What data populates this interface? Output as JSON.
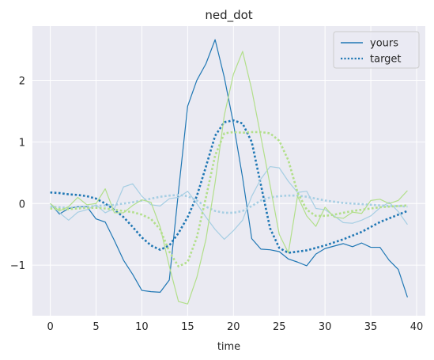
{
  "chart_data": {
    "type": "line",
    "title": "ned_dot",
    "xlabel": "time",
    "ylabel": "",
    "xlim": [
      -1.95,
      40.95
    ],
    "ylim": [
      -1.82,
      2.88
    ],
    "xticks": [
      0,
      5,
      10,
      15,
      20,
      25,
      30,
      35,
      40
    ],
    "yticks": [
      -1,
      0,
      1,
      2
    ],
    "xtick_labels": [
      "0",
      "5",
      "10",
      "15",
      "20",
      "25",
      "30",
      "35",
      "40"
    ],
    "ytick_labels": [
      "−1",
      "0",
      "1",
      "2"
    ],
    "grid": true,
    "legend": {
      "position": "top-right",
      "entries": [
        {
          "label": "yours",
          "style": "solid",
          "color": "#1f77b4"
        },
        {
          "label": "target",
          "style": "dotted",
          "color": "#1f77b4"
        }
      ]
    },
    "x": [
      0,
      1,
      2,
      3,
      4,
      5,
      6,
      7,
      8,
      9,
      10,
      11,
      12,
      13,
      14,
      15,
      16,
      17,
      18,
      19,
      20,
      21,
      22,
      23,
      24,
      25,
      26,
      27,
      28,
      29,
      30,
      31,
      32,
      33,
      34,
      35,
      36,
      37,
      38,
      39
    ],
    "series": [
      {
        "color": "#1f77b4",
        "style": "solid",
        "width": 1.2,
        "values": [
          0.0,
          -0.17,
          -0.08,
          -0.05,
          -0.05,
          -0.25,
          -0.3,
          -0.6,
          -0.92,
          -1.15,
          -1.41,
          -1.43,
          -1.44,
          -1.24,
          0.2,
          1.58,
          2.0,
          2.27,
          2.66,
          2.05,
          1.3,
          0.42,
          -0.57,
          -0.74,
          -0.75,
          -0.78,
          -0.9,
          -0.95,
          -1.01,
          -0.82,
          -0.73,
          -0.69,
          -0.65,
          -0.7,
          -0.64,
          -0.71,
          -0.71,
          -0.92,
          -1.07,
          -1.52
        ]
      },
      {
        "color": "#1f77b4",
        "style": "dotted",
        "width": 2.6,
        "values": [
          0.18,
          0.17,
          0.15,
          0.14,
          0.12,
          0.08,
          0.0,
          -0.1,
          -0.22,
          -0.38,
          -0.55,
          -0.68,
          -0.75,
          -0.68,
          -0.48,
          -0.22,
          0.12,
          0.6,
          1.1,
          1.32,
          1.35,
          1.3,
          1.0,
          0.3,
          -0.4,
          -0.72,
          -0.8,
          -0.78,
          -0.76,
          -0.72,
          -0.68,
          -0.63,
          -0.58,
          -0.52,
          -0.46,
          -0.38,
          -0.3,
          -0.24,
          -0.18,
          -0.12
        ]
      },
      {
        "color": "#a6cee3",
        "style": "solid",
        "width": 1.2,
        "values": [
          0.0,
          -0.15,
          -0.27,
          -0.14,
          -0.1,
          -0.02,
          -0.15,
          -0.08,
          0.27,
          0.32,
          0.12,
          -0.02,
          -0.04,
          0.08,
          0.1,
          0.2,
          0.0,
          -0.22,
          -0.42,
          -0.58,
          -0.44,
          -0.27,
          0.12,
          0.4,
          0.6,
          0.58,
          0.36,
          0.18,
          0.2,
          -0.08,
          -0.1,
          -0.2,
          -0.31,
          -0.32,
          -0.27,
          -0.2,
          -0.07,
          0.02,
          -0.13,
          -0.34
        ]
      },
      {
        "color": "#a6cee3",
        "style": "dotted",
        "width": 2.6,
        "values": [
          -0.05,
          -0.06,
          -0.07,
          -0.06,
          -0.05,
          -0.04,
          -0.03,
          -0.02,
          0.0,
          0.02,
          0.05,
          0.08,
          0.11,
          0.13,
          0.14,
          0.12,
          0.05,
          -0.05,
          -0.12,
          -0.15,
          -0.15,
          -0.12,
          -0.04,
          0.05,
          0.1,
          0.12,
          0.13,
          0.13,
          0.11,
          0.08,
          0.05,
          0.03,
          0.01,
          0.0,
          -0.01,
          -0.02,
          -0.03,
          -0.04,
          -0.04,
          -0.05
        ]
      },
      {
        "color": "#b2df8a",
        "style": "solid",
        "width": 1.2,
        "values": [
          0.0,
          -0.12,
          -0.05,
          0.1,
          -0.02,
          0.0,
          0.24,
          -0.15,
          -0.15,
          -0.03,
          0.06,
          0.02,
          -0.38,
          -1.02,
          -1.59,
          -1.63,
          -1.2,
          -0.58,
          0.34,
          1.43,
          2.1,
          2.47,
          1.85,
          1.08,
          0.3,
          -0.5,
          -0.8,
          0.12,
          -0.2,
          -0.37,
          -0.06,
          -0.22,
          -0.24,
          -0.14,
          -0.16,
          0.05,
          0.07,
          0.0,
          0.05,
          0.21
        ]
      },
      {
        "color": "#b2df8a",
        "style": "dotted",
        "width": 2.6,
        "values": [
          -0.08,
          -0.09,
          -0.09,
          -0.08,
          -0.07,
          -0.07,
          -0.08,
          -0.1,
          -0.12,
          -0.14,
          -0.18,
          -0.25,
          -0.42,
          -0.78,
          -1.02,
          -0.95,
          -0.55,
          0.1,
          0.78,
          1.14,
          1.16,
          1.15,
          1.16,
          1.16,
          1.14,
          1.02,
          0.7,
          0.18,
          -0.1,
          -0.2,
          -0.2,
          -0.18,
          -0.15,
          -0.12,
          -0.1,
          -0.08,
          -0.06,
          -0.05,
          -0.04,
          -0.03
        ]
      }
    ]
  }
}
